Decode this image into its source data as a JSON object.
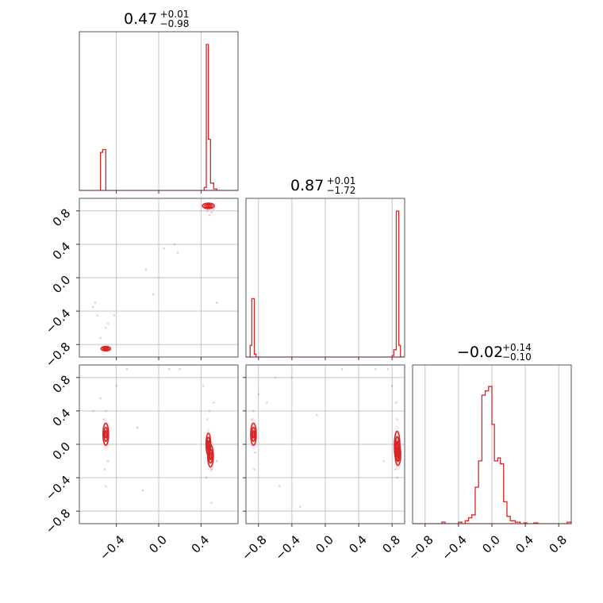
{
  "colors": {
    "accent": "#d62728",
    "grid": "#bdbdbd",
    "frame": "#555555"
  },
  "chart_data": {
    "type": "corner",
    "grid": true,
    "parameters": [
      {
        "title": {
          "value": "0.47",
          "plus": "+0.01",
          "minus": "−0.98"
        },
        "range": [
          -0.75,
          0.75
        ],
        "hist": {
          "bins": [
            {
              "x0": -0.55,
              "x1": -0.53,
              "h": 0.26
            },
            {
              "x0": -0.53,
              "x1": -0.5,
              "h": 0.28
            },
            {
              "x0": 0.43,
              "x1": 0.45,
              "h": 0.02
            },
            {
              "x0": 0.45,
              "x1": 0.47,
              "h": 1.0
            },
            {
              "x0": 0.47,
              "x1": 0.49,
              "h": 0.35
            },
            {
              "x0": 0.49,
              "x1": 0.52,
              "h": 0.05
            },
            {
              "x0": 0.52,
              "x1": 0.55,
              "h": 0.01
            }
          ]
        }
      },
      {
        "title": {
          "value": "0.87",
          "plus": "+0.01",
          "minus": "−1.72"
        },
        "range": [
          -0.95,
          0.95
        ],
        "hist": {
          "bins": [
            {
              "x0": -0.9,
              "x1": -0.88,
              "h": 0.08
            },
            {
              "x0": -0.88,
              "x1": -0.85,
              "h": 0.4
            },
            {
              "x0": -0.85,
              "x1": -0.83,
              "h": 0.02
            },
            {
              "x0": 0.8,
              "x1": 0.82,
              "h": 0.01
            },
            {
              "x0": 0.82,
              "x1": 0.85,
              "h": 0.05
            },
            {
              "x0": 0.85,
              "x1": 0.88,
              "h": 1.0
            },
            {
              "x0": 0.88,
              "x1": 0.9,
              "h": 0.08
            }
          ]
        }
      },
      {
        "title": {
          "value": "−0.02",
          "plus": "+0.14",
          "minus": "−0.10"
        },
        "range": [
          -0.95,
          0.95
        ],
        "hist": {
          "bins": [
            {
              "x0": -0.6,
              "x1": -0.56,
              "h": 0.01
            },
            {
              "x0": -0.4,
              "x1": -0.36,
              "h": 0.01
            },
            {
              "x0": -0.32,
              "x1": -0.28,
              "h": 0.02
            },
            {
              "x0": -0.28,
              "x1": -0.24,
              "h": 0.04
            },
            {
              "x0": -0.24,
              "x1": -0.2,
              "h": 0.06
            },
            {
              "x0": -0.2,
              "x1": -0.16,
              "h": 0.25
            },
            {
              "x0": -0.16,
              "x1": -0.12,
              "h": 0.43
            },
            {
              "x0": -0.12,
              "x1": -0.08,
              "h": 0.88
            },
            {
              "x0": -0.08,
              "x1": -0.04,
              "h": 0.91
            },
            {
              "x0": -0.04,
              "x1": 0.0,
              "h": 0.94
            },
            {
              "x0": 0.0,
              "x1": 0.03,
              "h": 0.68
            },
            {
              "x0": 0.03,
              "x1": 0.07,
              "h": 0.43
            },
            {
              "x0": 0.07,
              "x1": 0.1,
              "h": 0.45
            },
            {
              "x0": 0.1,
              "x1": 0.14,
              "h": 0.41
            },
            {
              "x0": 0.14,
              "x1": 0.18,
              "h": 0.15
            },
            {
              "x0": 0.18,
              "x1": 0.22,
              "h": 0.05
            },
            {
              "x0": 0.22,
              "x1": 0.28,
              "h": 0.02
            },
            {
              "x0": 0.28,
              "x1": 0.34,
              "h": 0.01
            },
            {
              "x0": 0.38,
              "x1": 0.42,
              "h": 0.005
            },
            {
              "x0": 0.5,
              "x1": 0.55,
              "h": 0.005
            },
            {
              "x0": 0.9,
              "x1": 0.95,
              "h": 0.01
            }
          ]
        }
      }
    ],
    "pairs": [
      {
        "xparam": 0,
        "yparam": 1,
        "blobs": [
          {
            "cx": 0.47,
            "cy": 0.86,
            "sx": 0.025,
            "sy": 0.015
          },
          {
            "cx": -0.5,
            "cy": -0.85,
            "sx": 0.02,
            "sy": 0.012
          }
        ],
        "scatter": [
          [
            0.46,
            0.8
          ],
          [
            0.5,
            0.78
          ],
          [
            0.52,
            0.82
          ],
          [
            0.48,
            0.75
          ],
          [
            0.45,
            0.84
          ],
          [
            -0.48,
            -0.82
          ],
          [
            -0.52,
            -0.86
          ],
          [
            -0.55,
            -0.72
          ],
          [
            -0.58,
            -0.45
          ],
          [
            -0.62,
            -0.35
          ],
          [
            -0.42,
            -0.45
          ],
          [
            -0.48,
            -0.55
          ],
          [
            0.15,
            0.4
          ],
          [
            0.18,
            0.3
          ],
          [
            -0.12,
            0.1
          ],
          [
            -0.05,
            -0.2
          ],
          [
            0.55,
            -0.3
          ],
          [
            -0.5,
            -0.6
          ],
          [
            0.05,
            0.35
          ],
          [
            -0.6,
            -0.3
          ]
        ]
      },
      {
        "xparam": 0,
        "yparam": 2,
        "blobs": [
          {
            "cx": -0.5,
            "cy": 0.12,
            "sx": 0.012,
            "sy": 0.06
          },
          {
            "cx": 0.47,
            "cy": 0.0,
            "sx": 0.01,
            "sy": 0.06
          },
          {
            "cx": 0.49,
            "cy": -0.14,
            "sx": 0.012,
            "sy": 0.06
          }
        ],
        "scatter": [
          [
            -0.5,
            0.4
          ],
          [
            -0.52,
            0.3
          ],
          [
            -0.48,
            -0.2
          ],
          [
            -0.51,
            -0.3
          ],
          [
            -0.55,
            0.55
          ],
          [
            -0.5,
            -0.5
          ],
          [
            -0.62,
            0.4
          ],
          [
            -0.4,
            0.7
          ],
          [
            -0.3,
            0.9
          ],
          [
            0.46,
            0.3
          ],
          [
            0.48,
            0.4
          ],
          [
            0.5,
            -0.3
          ],
          [
            0.45,
            -0.4
          ],
          [
            0.52,
            0.5
          ],
          [
            0.55,
            -0.2
          ],
          [
            0.42,
            0.7
          ],
          [
            0.5,
            -0.7
          ],
          [
            -0.15,
            -0.55
          ],
          [
            0.1,
            0.9
          ],
          [
            0.2,
            0.9
          ],
          [
            -0.2,
            0.2
          ]
        ]
      },
      {
        "xparam": 1,
        "yparam": 2,
        "blobs": [
          {
            "cx": -0.86,
            "cy": 0.12,
            "sx": 0.015,
            "sy": 0.06
          },
          {
            "cx": 0.86,
            "cy": -0.02,
            "sx": 0.015,
            "sy": 0.08
          },
          {
            "cx": 0.87,
            "cy": -0.12,
            "sx": 0.015,
            "sy": 0.06
          }
        ],
        "scatter": [
          [
            -0.86,
            0.4
          ],
          [
            -0.88,
            0.3
          ],
          [
            -0.84,
            -0.1
          ],
          [
            -0.85,
            -0.3
          ],
          [
            -0.8,
            0.6
          ],
          [
            -0.7,
            0.5
          ],
          [
            -0.6,
            0.8
          ],
          [
            -0.4,
            0.8
          ],
          [
            -0.3,
            -0.75
          ],
          [
            0.86,
            0.3
          ],
          [
            0.85,
            0.5
          ],
          [
            0.84,
            -0.3
          ],
          [
            0.8,
            0.7
          ],
          [
            0.75,
            0.9
          ],
          [
            0.86,
            -0.4
          ],
          [
            0.7,
            -0.2
          ],
          [
            0.2,
            0.9
          ],
          [
            -0.1,
            0.35
          ],
          [
            -0.55,
            -0.5
          ],
          [
            0.6,
            0.9
          ]
        ]
      }
    ],
    "ticks": {
      "p0": [
        -0.4,
        0.0,
        0.4
      ],
      "p0_labels": [
        "−0.4",
        "0.0",
        "0.4"
      ],
      "p12": [
        -0.8,
        -0.4,
        0.0,
        0.4,
        0.8
      ],
      "p12_labels": [
        "−0.8",
        "−0.4",
        "0.0",
        "0.4",
        "0.8"
      ]
    }
  }
}
